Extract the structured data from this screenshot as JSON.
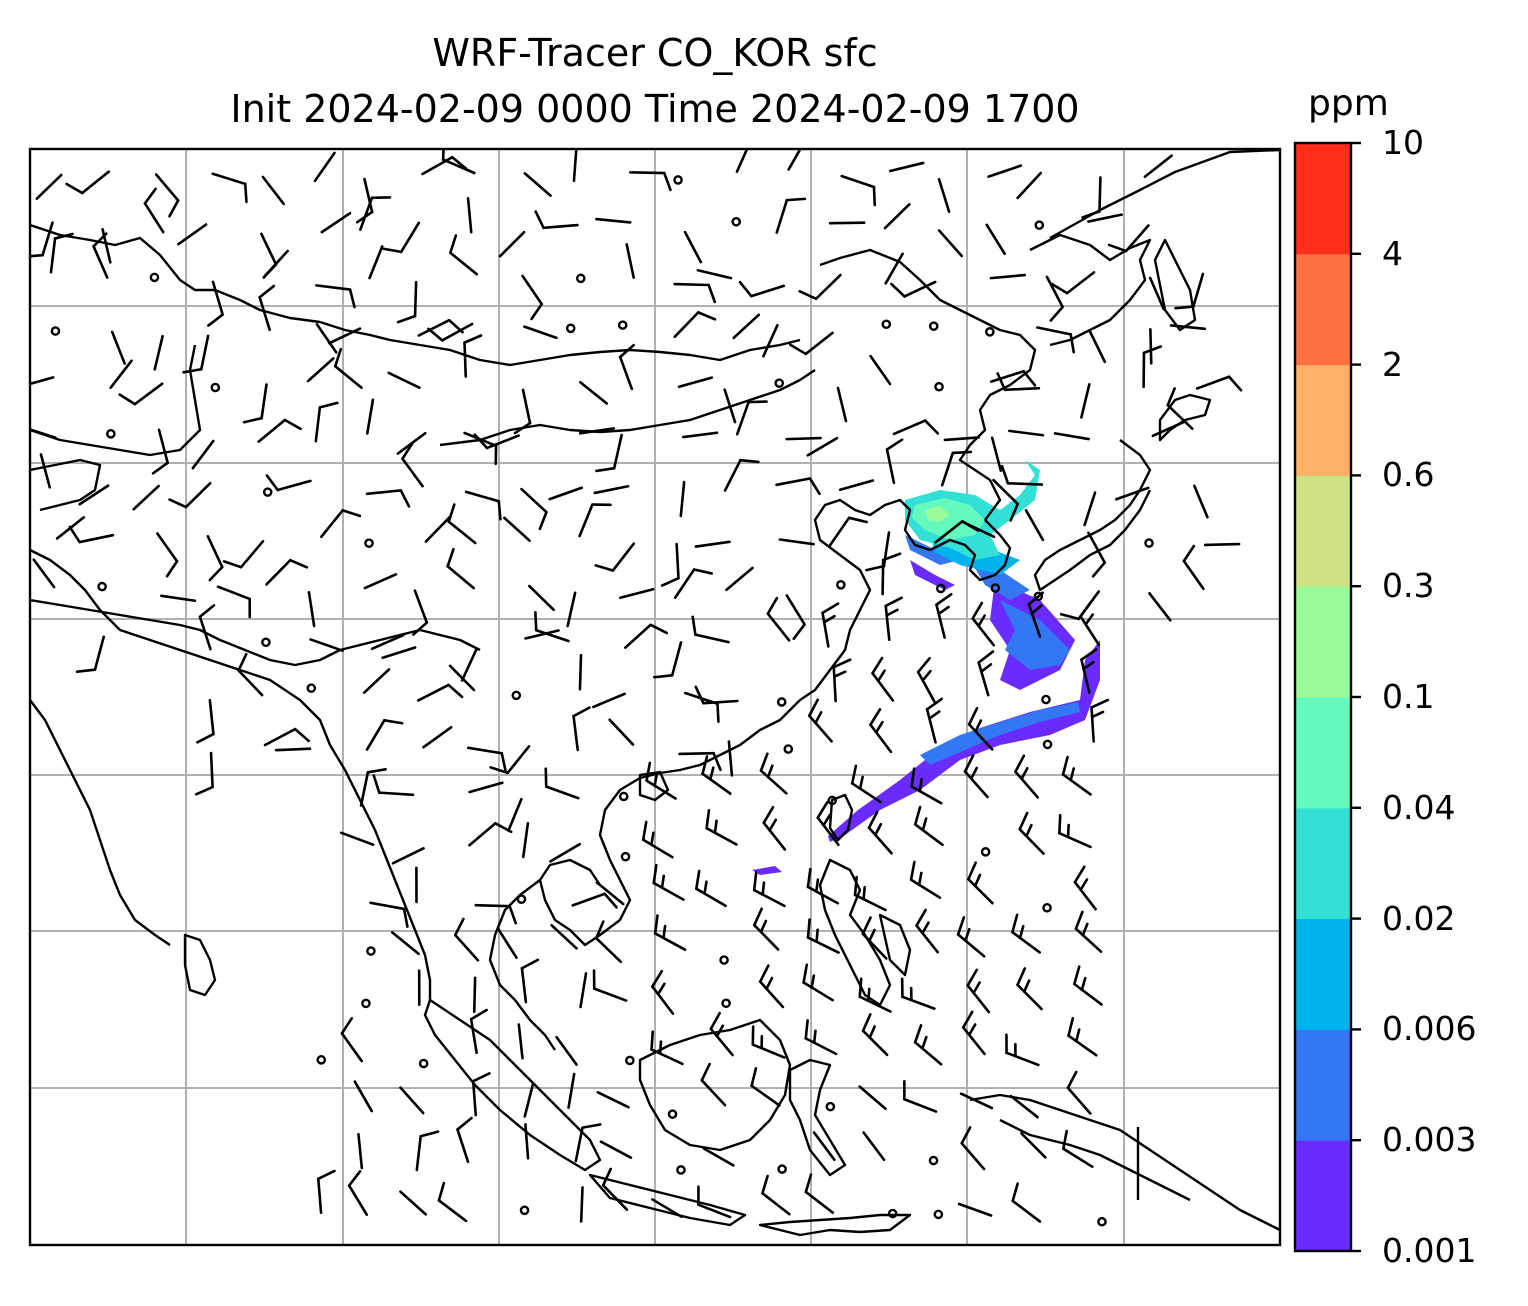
{
  "title": {
    "line1": "WRF-Tracer CO_KOR sfc",
    "line2": "Init 2024-02-09 0000 Time 2024-02-09 1700"
  },
  "colorbar": {
    "unit": "ppm",
    "levels": [
      "0.001",
      "0.003",
      "0.006",
      "0.02",
      "0.04",
      "0.1",
      "0.3",
      "0.6",
      "2",
      "4",
      "10"
    ],
    "colors": [
      "#6a2bff",
      "#3377f2",
      "#00b4eb",
      "#33e0d6",
      "#66f9be",
      "#99fa99",
      "#cce285",
      "#ffb067",
      "#ff7140",
      "#ff2e1b"
    ]
  },
  "map": {
    "frame_color": "#000000",
    "grid_color": "#b0b0b0",
    "coastline_color": "#000000",
    "wind_barb_color": "#000000"
  }
}
